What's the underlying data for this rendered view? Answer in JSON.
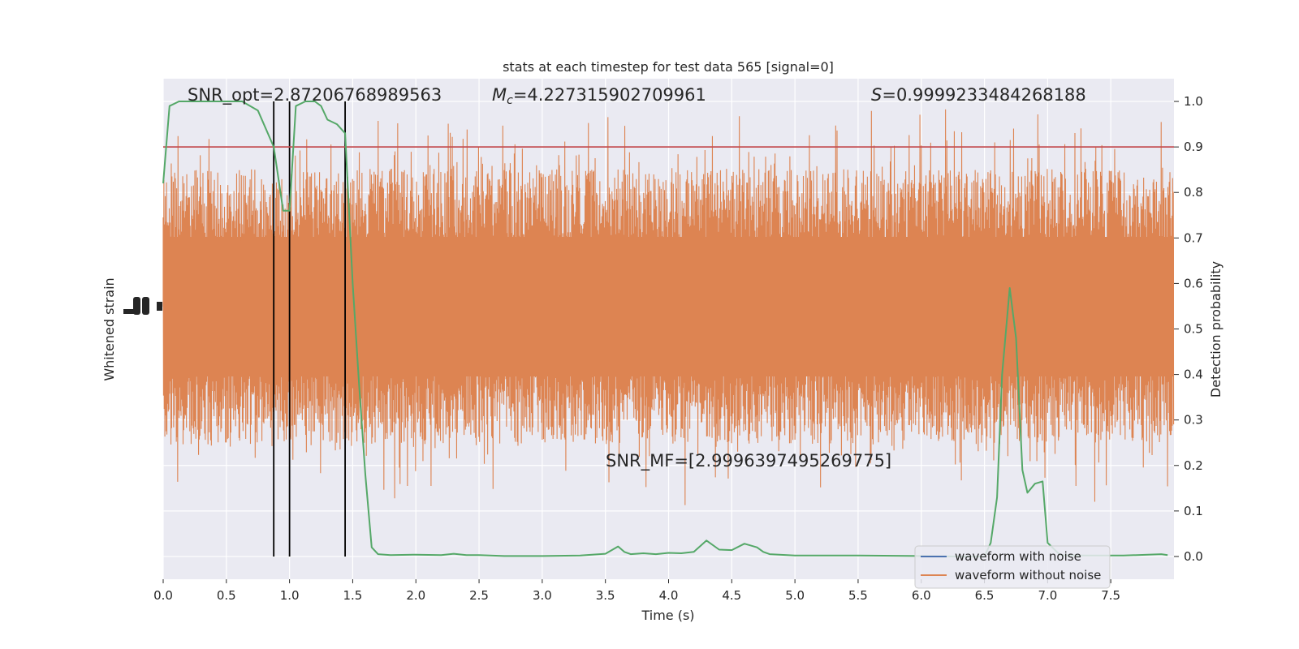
{
  "chart_data": {
    "type": "line",
    "title": "stats at each timestep for test data 565 [signal=0]",
    "xlabel": "Time (s)",
    "ylabel_left": "Whitened strain",
    "ylabel_right": "Detection probability",
    "xlim": [
      0.0,
      8.0
    ],
    "ylim_right": [
      -0.05,
      1.05
    ],
    "x_ticks": [
      "0.0",
      "0.5",
      "1.0",
      "1.5",
      "2.0",
      "2.5",
      "3.0",
      "3.5",
      "4.0",
      "4.5",
      "5.0",
      "5.5",
      "6.0",
      "6.5",
      "7.0",
      "7.5"
    ],
    "right_ticks": [
      "0.0",
      "0.1",
      "0.2",
      "0.3",
      "0.4",
      "0.5",
      "0.6",
      "0.7",
      "0.8",
      "0.9",
      "1.0"
    ],
    "threshold": 0.9,
    "vertical_markers": [
      0.875,
      1.0,
      1.44
    ],
    "annotations": {
      "snr_opt": "SNR_opt=2.87206768989563",
      "mc_symbol": "M",
      "mc_sub": "c",
      "mc_value": "=4.227315902709961",
      "s_symbol": "S",
      "s_value": "=0.9999233484268188",
      "snr_mf": "SNR_MF=[2.9996397495269775]"
    },
    "legend": {
      "placement": "lower-right",
      "entries": [
        "waveform with noise",
        "waveform without noise"
      ]
    },
    "colors": {
      "background": "#eaeaf2",
      "grid": "#ffffff",
      "noise_waveform": "#dd8452",
      "clean_waveform": "#4c72b0",
      "probability": "#55a868",
      "threshold": "#c44e52",
      "markers": "#000000"
    },
    "series": [
      {
        "name": "Detection probability",
        "x": [
          0.0,
          0.05,
          0.125,
          0.25,
          0.375,
          0.5,
          0.625,
          0.75,
          0.875,
          0.95,
          1.0,
          1.05,
          1.125,
          1.2,
          1.25,
          1.3,
          1.375,
          1.44,
          1.5,
          1.55,
          1.6,
          1.65,
          1.7,
          1.8,
          2.0,
          2.2,
          2.3,
          2.4,
          2.5,
          2.7,
          3.0,
          3.3,
          3.5,
          3.6,
          3.65,
          3.7,
          3.8,
          3.9,
          4.0,
          4.1,
          4.2,
          4.3,
          4.4,
          4.5,
          4.6,
          4.7,
          4.75,
          4.8,
          5.0,
          5.5,
          6.0,
          6.3,
          6.5,
          6.55,
          6.6,
          6.64,
          6.7,
          6.75,
          6.8,
          6.84,
          6.9,
          6.96,
          7.0,
          7.1,
          7.3,
          7.6,
          7.9,
          7.95
        ],
        "values": [
          0.82,
          0.99,
          1.0,
          1.0,
          1.0,
          1.0,
          1.0,
          0.98,
          0.9,
          0.76,
          0.76,
          0.99,
          1.0,
          1.0,
          0.99,
          0.96,
          0.95,
          0.93,
          0.6,
          0.38,
          0.18,
          0.02,
          0.005,
          0.003,
          0.004,
          0.003,
          0.006,
          0.003,
          0.003,
          0.001,
          0.001,
          0.002,
          0.006,
          0.022,
          0.01,
          0.005,
          0.007,
          0.005,
          0.008,
          0.007,
          0.01,
          0.035,
          0.015,
          0.014,
          0.028,
          0.02,
          0.01,
          0.005,
          0.002,
          0.002,
          0.001,
          0.0,
          0.0,
          0.03,
          0.13,
          0.4,
          0.59,
          0.48,
          0.19,
          0.14,
          0.16,
          0.165,
          0.03,
          0.003,
          0.002,
          0.002,
          0.005,
          0.003
        ]
      },
      {
        "name": "waveform with noise",
        "values": []
      },
      {
        "name": "waveform without noise",
        "values": []
      }
    ]
  }
}
